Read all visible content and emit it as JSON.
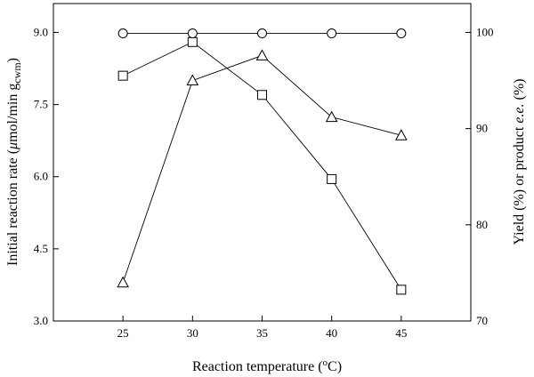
{
  "chart_data": {
    "type": "line",
    "title": "",
    "x": [
      25,
      30,
      35,
      40,
      45
    ],
    "x_ticks": [
      "25",
      "30",
      "35",
      "40",
      "45"
    ],
    "xlabel": {
      "main": "Reaction temperature (",
      "sup": "o",
      "tail": "C)"
    },
    "xlim": [
      20,
      50
    ],
    "y_left": {
      "label_prefix": "Initial reaction rate (",
      "mu": "μ",
      "label_mid": "mol/min g",
      "sub": "cwm",
      "label_suffix": ")",
      "ylim": [
        3.0,
        9.6
      ],
      "ticks": [
        "3.0",
        "4.5",
        "6.0",
        "7.5",
        "9.0"
      ]
    },
    "y_right": {
      "label_prefix": "Yield (%) or product ",
      "italic": "e.e.",
      "label_suffix": " (%)",
      "ylim": [
        70,
        103
      ],
      "ticks": [
        "70",
        "80",
        "90",
        "100"
      ]
    },
    "series": [
      {
        "axis": "left",
        "marker": "square",
        "values": [
          8.1,
          8.8,
          7.7,
          5.95,
          3.65
        ]
      },
      {
        "axis": "right",
        "marker": "triangle",
        "values": [
          74.0,
          95.0,
          97.6,
          91.2,
          89.3
        ]
      },
      {
        "axis": "right",
        "marker": "circle",
        "values": [
          99.9,
          99.9,
          99.9,
          99.9,
          99.9
        ]
      }
    ]
  }
}
